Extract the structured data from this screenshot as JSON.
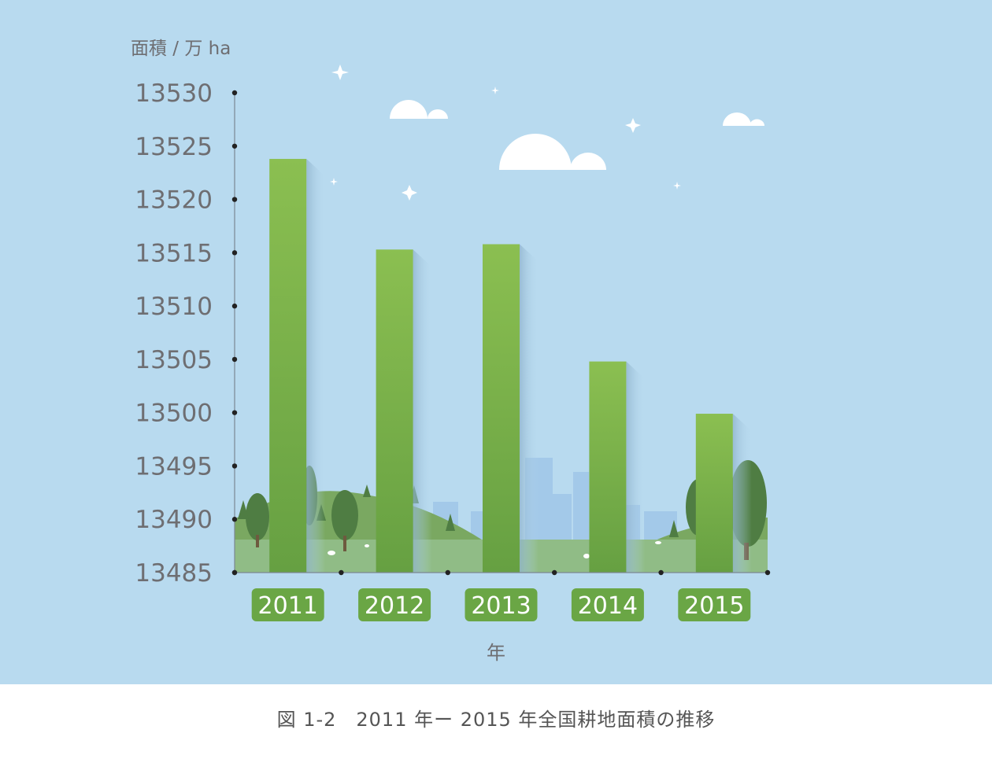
{
  "chart_data": {
    "type": "bar",
    "ylabel": "面積 / 万 ha",
    "xlabel": "年",
    "categories": [
      "2011",
      "2012",
      "2013",
      "2014",
      "2015"
    ],
    "values": [
      13523.8,
      13515.3,
      13515.8,
      13504.8,
      13499.9
    ],
    "ylim": [
      13485,
      13530
    ],
    "yticks": [
      "13530",
      "13525",
      "13520",
      "13515",
      "13510",
      "13505",
      "13500",
      "13495",
      "13490",
      "13485"
    ],
    "grid": false,
    "legend": "none"
  },
  "caption": "図 1-2　2011 年ー 2015 年全国耕地面積の推移",
  "colors": {
    "background": "#b8daef",
    "bar_top": "#8bbf51",
    "bar_bottom": "#66a042",
    "axis_text": "#6e6e72",
    "label_box": "#6aa645"
  }
}
